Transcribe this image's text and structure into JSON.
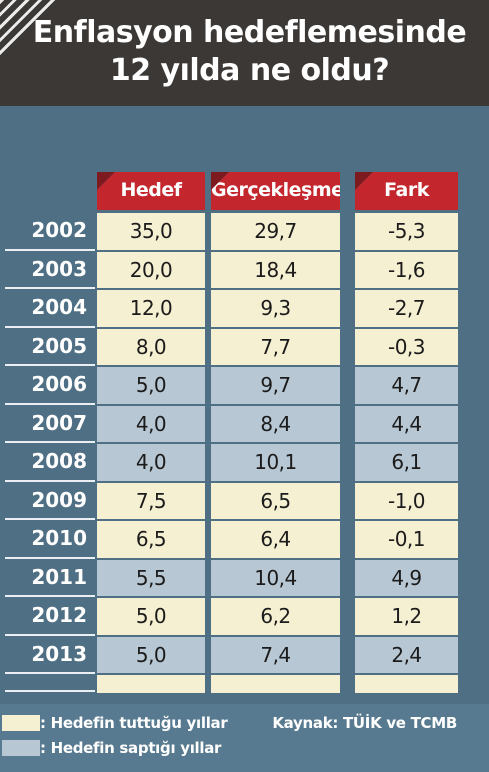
{
  "header": {
    "title": "Enflasyon hedeflemesinde\n12 yılda ne oldu?"
  },
  "table": {
    "columns": [
      "Hedef",
      "Gerçekleşme",
      "Fark"
    ],
    "rows": [
      {
        "year": "2002",
        "cells": [
          "35,0",
          "29,7",
          "-5,3"
        ],
        "fill": "#f6f0d2"
      },
      {
        "year": "2003",
        "cells": [
          "20,0",
          "18,4",
          "-1,6"
        ],
        "fill": "#f6f0d2"
      },
      {
        "year": "2004",
        "cells": [
          "12,0",
          "9,3",
          "-2,7"
        ],
        "fill": "#f6f0d2"
      },
      {
        "year": "2005",
        "cells": [
          "8,0",
          "7,7",
          "-0,3"
        ],
        "fill": "#f6f0d2"
      },
      {
        "year": "2006",
        "cells": [
          "5,0",
          "9,7",
          "4,7"
        ],
        "fill": "#b7c7d3"
      },
      {
        "year": "2007",
        "cells": [
          "4,0",
          "8,4",
          "4,4"
        ],
        "fill": "#b7c7d3"
      },
      {
        "year": "2008",
        "cells": [
          "4,0",
          "10,1",
          "6,1"
        ],
        "fill": "#b7c7d3"
      },
      {
        "year": "2009",
        "cells": [
          "7,5",
          "6,5",
          "-1,0"
        ],
        "fill": "#f6f0d2"
      },
      {
        "year": "2010",
        "cells": [
          "6,5",
          "6,4",
          "-0,1"
        ],
        "fill": "#f6f0d2"
      },
      {
        "year": "2011",
        "cells": [
          "5,5",
          "10,4",
          "4,9"
        ],
        "fill": "#b7c7d3"
      },
      {
        "year": "2012",
        "cells": [
          "5,0",
          "6,2",
          "1,2"
        ],
        "fill": "#f6f0d2"
      },
      {
        "year": "2013",
        "cells": [
          "5,0",
          "7,4",
          "2,4"
        ],
        "fill": "#b7c7d3"
      }
    ]
  },
  "legend": [
    {
      "label": ": Hedefin tuttuğu yıllar",
      "color": "#f6f0d2"
    },
    {
      "label": ": Hedefin saptığı yıllar",
      "color": "#b7c7d3"
    }
  ],
  "source": "Kaynak: TÜİK ve TCMB"
}
